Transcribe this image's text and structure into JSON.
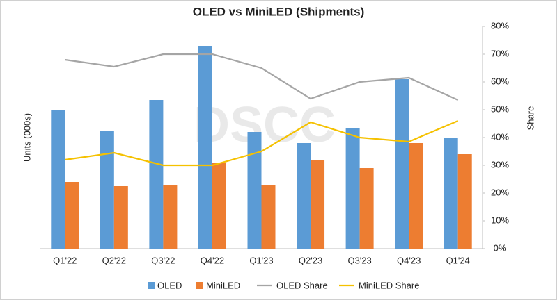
{
  "chart_data": {
    "type": "bar_line",
    "title": "OLED vs MiniLED (Shipments)",
    "y_label": "Units  (000s)",
    "y2_label": "Share",
    "watermark": "DSCC",
    "categories": [
      "Q1'22",
      "Q2'22",
      "Q3'22",
      "Q4'22",
      "Q1'23",
      "Q2'23",
      "Q3'23",
      "Q4'23",
      "Q1'24"
    ],
    "ylim": [
      0,
      80
    ],
    "y2lim": [
      0,
      80
    ],
    "y2ticks": [
      {
        "value": 0,
        "label": "0%"
      },
      {
        "value": 10,
        "label": "10%"
      },
      {
        "value": 20,
        "label": "20%"
      },
      {
        "value": 30,
        "label": "30%"
      },
      {
        "value": 40,
        "label": "40%"
      },
      {
        "value": 50,
        "label": "50%"
      },
      {
        "value": 60,
        "label": "60%"
      },
      {
        "value": 70,
        "label": "70%"
      },
      {
        "value": 80,
        "label": "80%"
      }
    ],
    "grid": false,
    "legend": "bottom",
    "series": [
      {
        "name": "OLED",
        "type": "bar",
        "color": "#5b9bd5",
        "values": [
          50,
          42.5,
          53.5,
          73,
          42,
          38,
          43.5,
          61,
          40
        ]
      },
      {
        "name": "MiniLED",
        "type": "bar",
        "color": "#ed7d31",
        "values": [
          24,
          22.5,
          23,
          31,
          23,
          32,
          29,
          38,
          34
        ]
      },
      {
        "name": "OLED Share",
        "type": "line",
        "axis": "y2",
        "color": "#a5a5a5",
        "values": [
          68,
          65.5,
          70,
          70,
          65,
          54,
          60,
          61.5,
          53.5
        ]
      },
      {
        "name": "MiniLED Share",
        "type": "line",
        "axis": "y2",
        "color": "#f5c100",
        "values": [
          32,
          34.5,
          30,
          30,
          35,
          45.5,
          40,
          38.5,
          46
        ]
      }
    ]
  }
}
